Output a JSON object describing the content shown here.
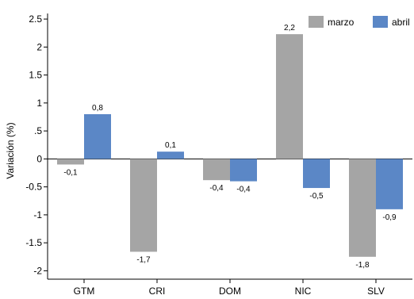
{
  "chart_data": {
    "type": "bar",
    "title": "",
    "xlabel": "",
    "ylabel": "Variación (%)",
    "ylim": [
      -2.15,
      2.6
    ],
    "yticks": [
      2.5,
      2,
      1.5,
      1,
      0.5,
      0,
      -0.5,
      -1,
      -1.5,
      -2
    ],
    "ytick_labels": [
      "2.5",
      "2",
      "1.5",
      "1",
      ".5",
      "0",
      "-0.5",
      "-1",
      "-1.5",
      "-2"
    ],
    "categories": [
      "GTM",
      "CRI",
      "DOM",
      "NIC",
      "SLV"
    ],
    "series": [
      {
        "name": "marzo",
        "color": "#a5a5a5",
        "values": [
          -0.1,
          -1.66,
          -0.38,
          2.23,
          -1.75
        ],
        "labels": [
          "-0,1",
          "-1,7",
          "-0,4",
          "2,2",
          "-1,8"
        ]
      },
      {
        "name": "abril",
        "color": "#5b87c6",
        "values": [
          0.8,
          0.13,
          -0.4,
          -0.52,
          -0.9
        ],
        "labels": [
          "0,8",
          "0,1",
          "-0,4",
          "-0,5",
          "-0,9"
        ]
      }
    ],
    "grid": false,
    "legend_position": "top-right"
  }
}
